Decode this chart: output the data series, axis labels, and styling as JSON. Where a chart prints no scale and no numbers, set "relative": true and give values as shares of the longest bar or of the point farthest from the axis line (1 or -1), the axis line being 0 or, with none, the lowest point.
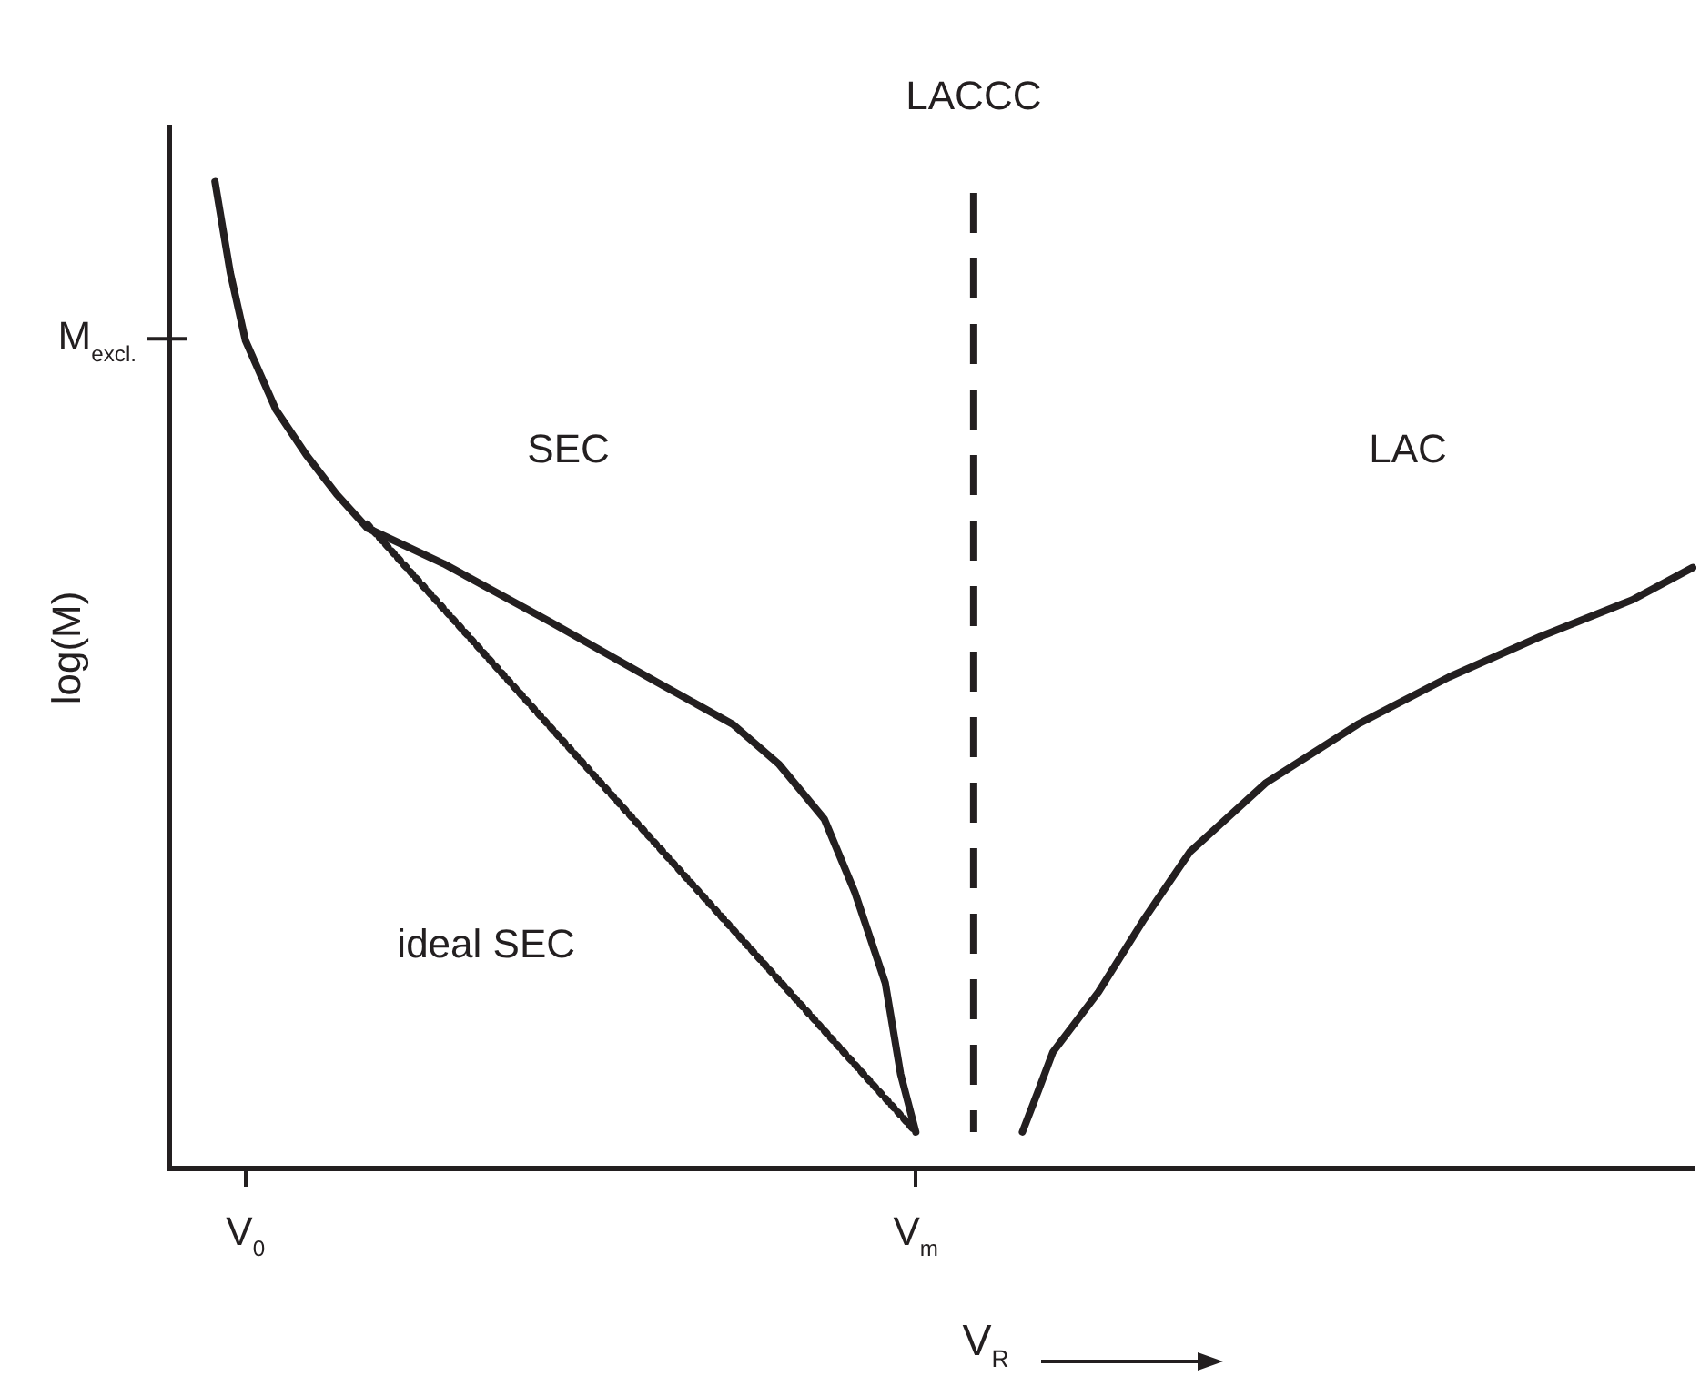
{
  "chart_data": {
    "type": "line",
    "relative": true,
    "xlabel": "V$_{R}$",
    "ylabel": "log(M)",
    "categories": [
      null,
      null,
      null,
      null,
      null,
      "V$_{0}$",
      null,
      null,
      null,
      null,
      null,
      null,
      null,
      null,
      null,
      null,
      null,
      null,
      null,
      null,
      null,
      null,
      null,
      null,
      null,
      null,
      null,
      null,
      null,
      null,
      null,
      null,
      null,
      null,
      null,
      null,
      null,
      null,
      null,
      null,
      null,
      null,
      null,
      null,
      null,
      null,
      null,
      null,
      null,
      "V$_{m}$",
      null,
      null,
      null,
      null,
      null,
      null,
      null,
      null,
      null,
      null,
      null,
      null,
      null,
      null,
      null,
      null,
      null,
      null,
      null,
      null,
      null,
      null,
      null,
      null,
      null,
      null,
      null,
      null,
      null,
      null,
      null,
      null,
      null,
      null,
      null,
      null,
      null,
      null,
      null,
      null,
      null,
      null,
      null,
      null,
      null,
      null,
      null,
      null,
      null,
      null,
      null
    ],
    "grid": false,
    "legend": false,
    "marker": "none",
    "series": [
      {
        "color": "#231f20",
        "line_style": "solid",
        "values": [
          null,
          null,
          null,
          1.0,
          0.908,
          0.839,
          null,
          0.769,
          null,
          0.723,
          null,
          0.683,
          null,
          0.649,
          null,
          null,
          null,
          null,
          0.613,
          null,
          null,
          null,
          null,
          null,
          null,
          0.554,
          null,
          null,
          null,
          null,
          null,
          null,
          0.493,
          null,
          null,
          null,
          null,
          0.45,
          null,
          null,
          0.41,
          null,
          null,
          0.354,
          null,
          0.28,
          null,
          0.188,
          0.096,
          0.037,
          null,
          null,
          null,
          null,
          null,
          null,
          null,
          null,
          null,
          null,
          null,
          null,
          null,
          null,
          null,
          null,
          null,
          null,
          null,
          null,
          null,
          null,
          null,
          null,
          null,
          null,
          null,
          null,
          null,
          null,
          null,
          null,
          null,
          null,
          null,
          null,
          null,
          null,
          null,
          null,
          null,
          null,
          null,
          null,
          null,
          null,
          null,
          null,
          null,
          null,
          null
        ]
      },
      {
        "color": "#231f20",
        "line_style": "dotted",
        "values": [
          null,
          null,
          null,
          null,
          null,
          null,
          null,
          null,
          null,
          null,
          null,
          null,
          null,
          0.653,
          null,
          null,
          null,
          null,
          null,
          null,
          null,
          null,
          null,
          null,
          null,
          null,
          null,
          null,
          null,
          null,
          null,
          null,
          null,
          null,
          null,
          null,
          null,
          null,
          null,
          null,
          null,
          null,
          null,
          null,
          null,
          null,
          null,
          null,
          null,
          0.037,
          null,
          null,
          null,
          null,
          null,
          null,
          null,
          null,
          null,
          null,
          null,
          null,
          null,
          null,
          null,
          null,
          null,
          null,
          null,
          null,
          null,
          null,
          null,
          null,
          null,
          null,
          null,
          null,
          null,
          null,
          null,
          null,
          null,
          null,
          null,
          null,
          null,
          null,
          null,
          null,
          null,
          null,
          null,
          null,
          null,
          null,
          null,
          null,
          null,
          null,
          null
        ]
      },
      {
        "color": "#231f20",
        "line_style": "solid",
        "values": [
          null,
          null,
          null,
          null,
          null,
          null,
          null,
          null,
          null,
          null,
          null,
          null,
          null,
          null,
          null,
          null,
          null,
          null,
          null,
          null,
          null,
          null,
          null,
          null,
          null,
          null,
          null,
          null,
          null,
          null,
          null,
          null,
          null,
          null,
          null,
          null,
          null,
          null,
          null,
          null,
          null,
          null,
          null,
          null,
          null,
          null,
          null,
          null,
          null,
          null,
          null,
          null,
          null,
          null,
          null,
          null,
          0.037,
          0.077,
          0.118,
          null,
          null,
          0.179,
          null,
          null,
          0.253,
          null,
          null,
          0.321,
          null,
          null,
          null,
          null,
          0.391,
          null,
          null,
          null,
          null,
          null,
          0.45,
          null,
          null,
          null,
          null,
          null,
          0.498,
          null,
          null,
          null,
          null,
          null,
          0.539,
          null,
          null,
          null,
          null,
          null,
          0.576,
          null,
          null,
          null,
          0.609
        ]
      }
    ],
    "annotations": [
      "M$_{excl.}$",
      "SEC",
      "LAC",
      "ideal SEC",
      "LACCC"
    ]
  }
}
